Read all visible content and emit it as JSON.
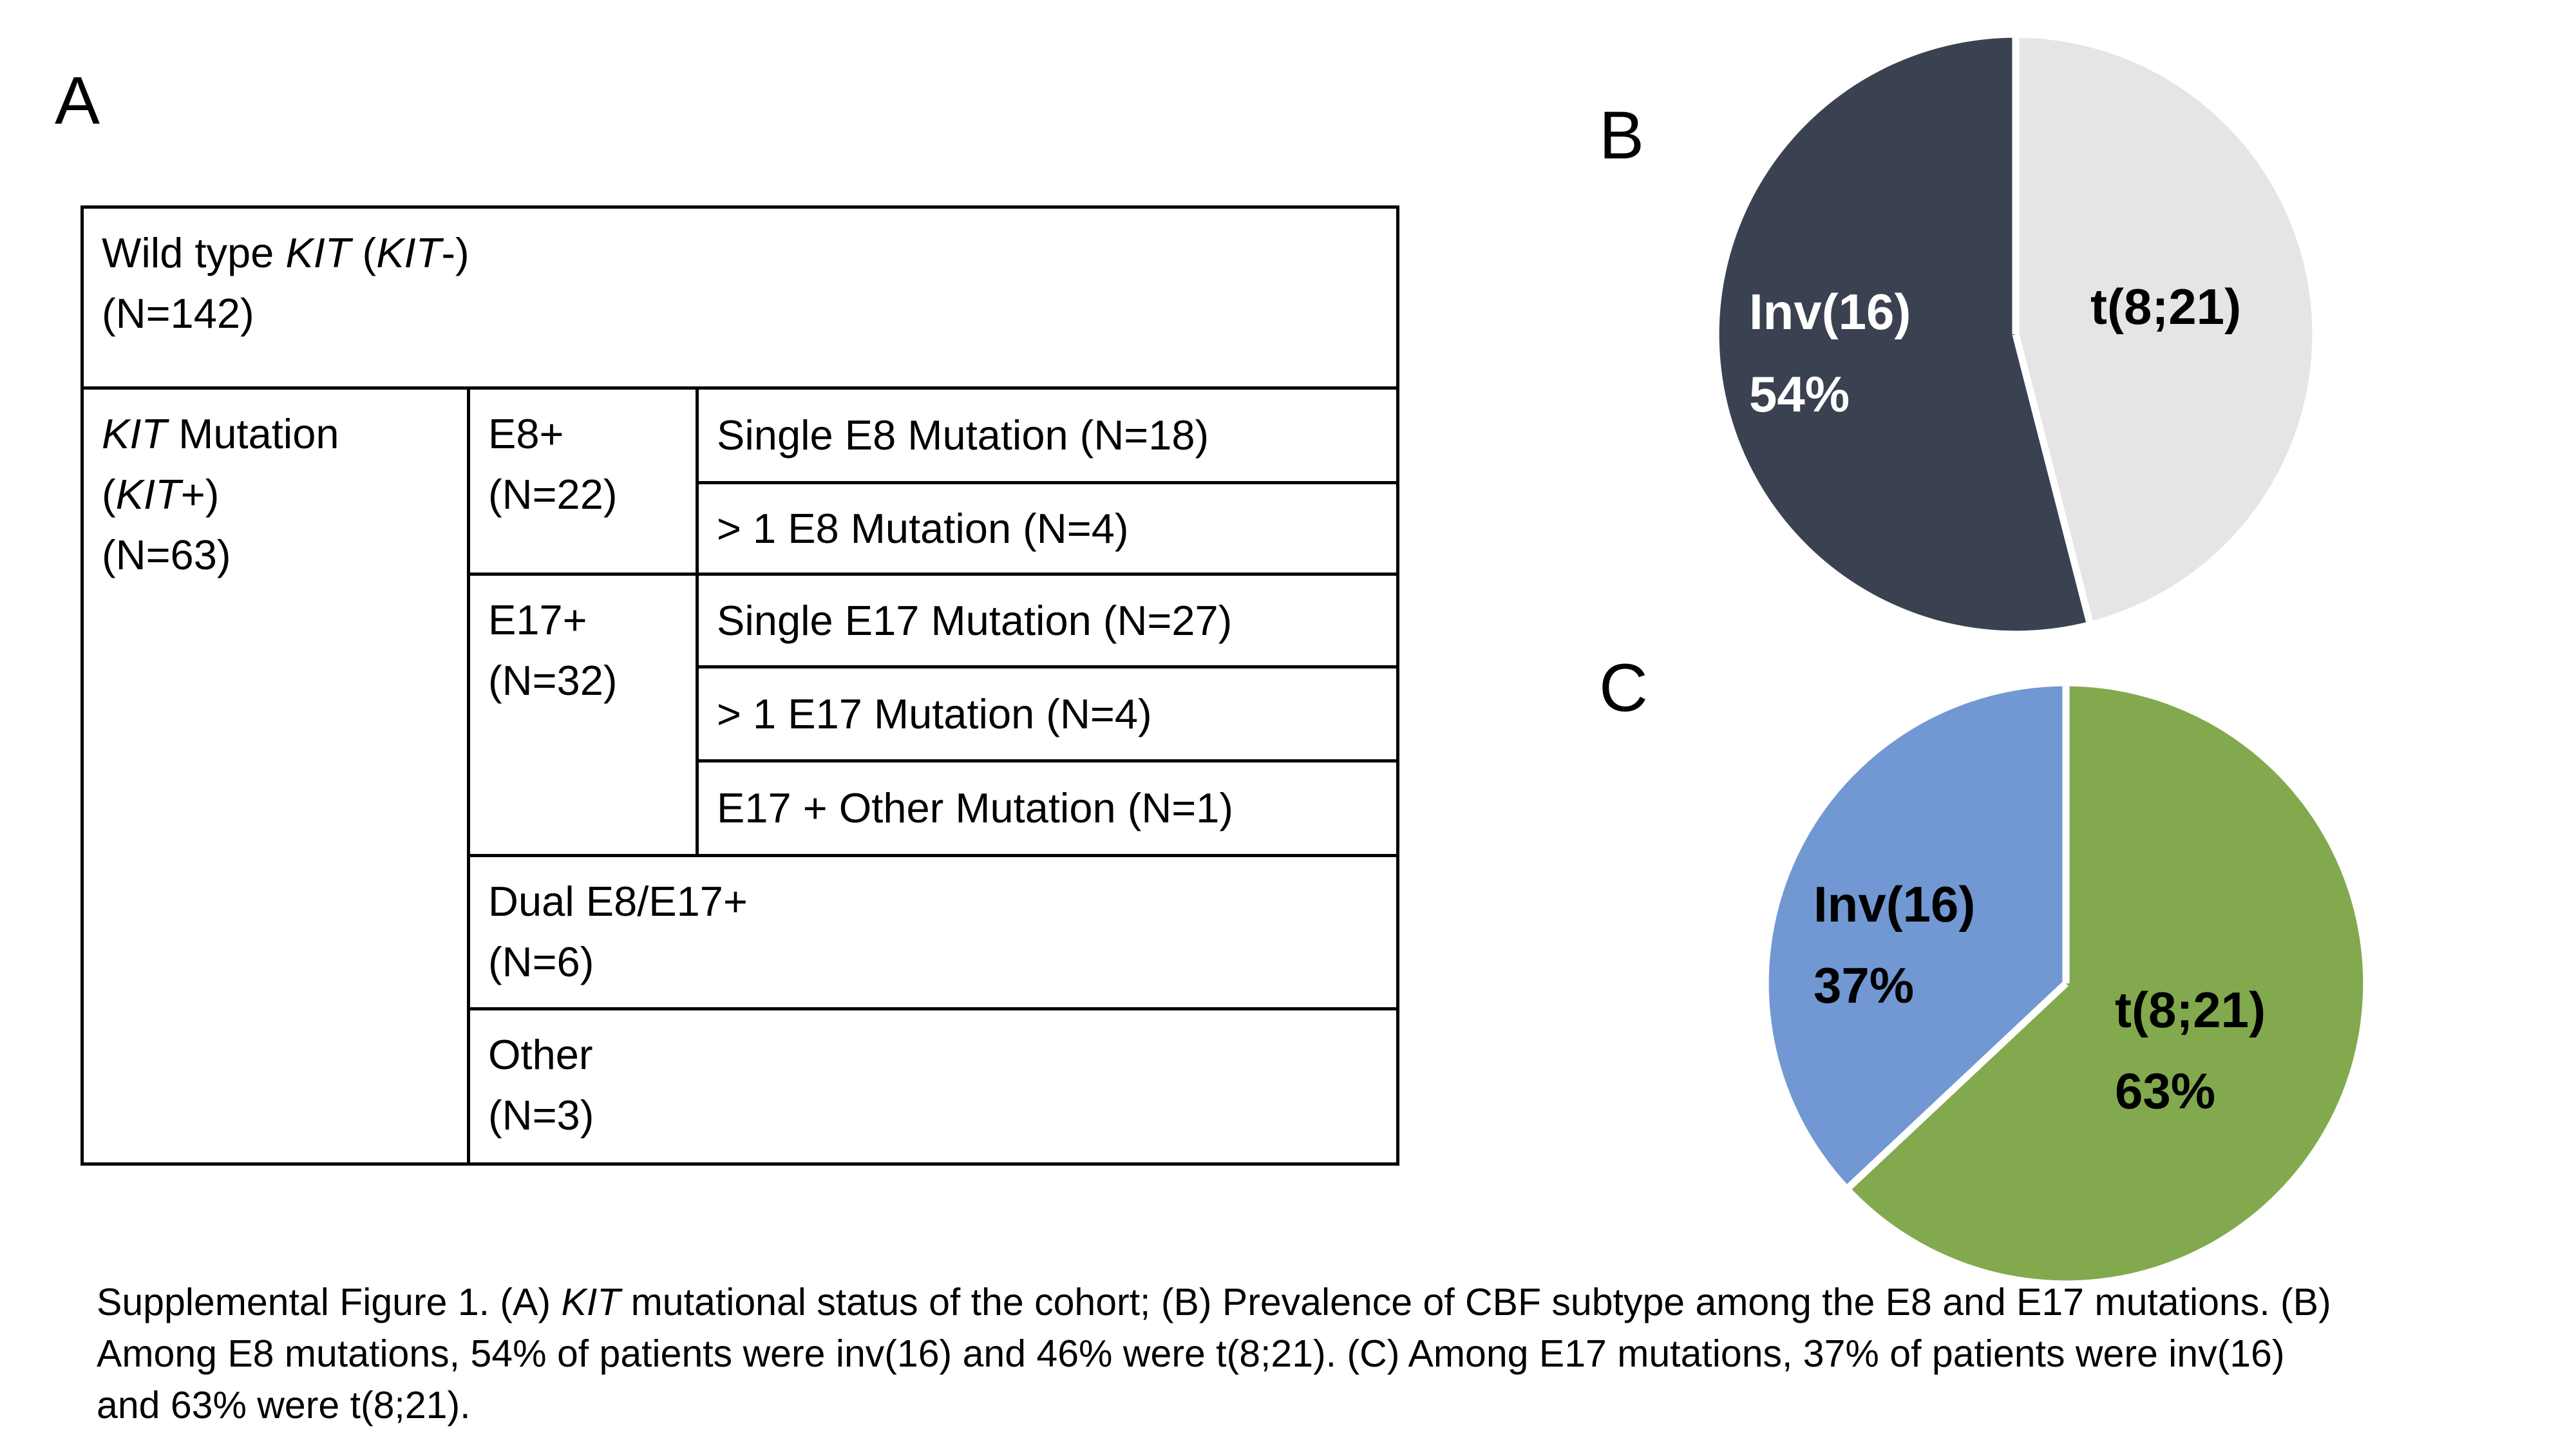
{
  "figure": {
    "panel_a_label": "A",
    "panel_b_label": "B",
    "panel_c_label": "C"
  },
  "table": {
    "wild_type": {
      "lines": [
        [
          {
            "t": "Wild type "
          },
          {
            "t": "KIT",
            "i": true
          },
          {
            "t": " ("
          },
          {
            "t": "KIT",
            "i": true
          },
          {
            "t": "-)"
          }
        ],
        [
          {
            "t": "(N=142)"
          }
        ]
      ]
    },
    "kit_mutation": {
      "lines": [
        [
          {
            "t": "KIT",
            "i": true
          },
          {
            "t": " Mutation"
          }
        ],
        [
          {
            "t": "("
          },
          {
            "t": "KIT",
            "i": true
          },
          {
            "t": "+)"
          }
        ],
        [
          {
            "t": "(N=63)"
          }
        ]
      ]
    },
    "e8": {
      "lines": [
        [
          {
            "t": "E8+"
          }
        ],
        [
          {
            "t": "(N=22)"
          }
        ]
      ]
    },
    "single_e8": {
      "lines": [
        [
          {
            "t": "Single E8 Mutation (N=18)"
          }
        ]
      ]
    },
    "multi_e8": {
      "lines": [
        [
          {
            "t": "> 1 E8 Mutation (N=4)"
          }
        ]
      ]
    },
    "e17": {
      "lines": [
        [
          {
            "t": "E17+"
          }
        ],
        [
          {
            "t": "(N=32)"
          }
        ]
      ]
    },
    "single_e17": {
      "lines": [
        [
          {
            "t": "Single E17 Mutation (N=27)"
          }
        ]
      ]
    },
    "multi_e17": {
      "lines": [
        [
          {
            "t": "> 1 E17 Mutation (N=4)"
          }
        ]
      ]
    },
    "e17_other": {
      "lines": [
        [
          {
            "t": "E17 + Other Mutation (N=1)"
          }
        ]
      ]
    },
    "dual": {
      "lines": [
        [
          {
            "t": "Dual E8/E17+"
          }
        ],
        [
          {
            "t": "(N=6)"
          }
        ]
      ]
    },
    "other": {
      "lines": [
        [
          {
            "t": "Other"
          }
        ],
        [
          {
            "t": "(N=3)"
          }
        ]
      ]
    }
  },
  "chart_data": [
    {
      "type": "pie",
      "panel": "B",
      "slices": [
        {
          "label": "Inv(16)",
          "value_pct": 54,
          "pct_label": "54%",
          "color": "#3A4151",
          "label_color": "#FFFFFF"
        },
        {
          "label": "t(8;21)",
          "value_pct": 46,
          "pct_label": "",
          "color": "#E6E5E6",
          "label_color": "#000000"
        }
      ],
      "start": "12-oclock",
      "first_slice_direction": "counterclockwise",
      "separator_color": "#FFFFFF",
      "legend": "none"
    },
    {
      "type": "pie",
      "panel": "C",
      "slices": [
        {
          "label": "Inv(16)",
          "value_pct": 37,
          "pct_label": "37%",
          "color": "#7198D3",
          "label_color": "#000000"
        },
        {
          "label": "t(8;21)",
          "value_pct": 63,
          "pct_label": "63%",
          "color": "#82A94E",
          "label_color": "#000000"
        }
      ],
      "start": "12-oclock",
      "first_slice_direction": "counterclockwise",
      "separator_color": "#FFFFFF",
      "legend": "none"
    },
    {
      "type": "table",
      "panel": "A",
      "rows": [
        {
          "group": "Wild type KIT (KIT-)",
          "n": 142
        },
        {
          "group": "KIT Mutation (KIT+)",
          "n": 63,
          "subgroups": [
            {
              "group": "E8+",
              "n": 22,
              "subgroups": [
                {
                  "group": "Single E8 Mutation",
                  "n": 18
                },
                {
                  "group": "> 1 E8 Mutation",
                  "n": 4
                }
              ]
            },
            {
              "group": "E17+",
              "n": 32,
              "subgroups": [
                {
                  "group": "Single E17 Mutation",
                  "n": 27
                },
                {
                  "group": "> 1 E17 Mutation",
                  "n": 4
                },
                {
                  "group": "E17 + Other Mutation",
                  "n": 1
                }
              ]
            },
            {
              "group": "Dual E8/E17+",
              "n": 6
            },
            {
              "group": "Other",
              "n": 3
            }
          ]
        }
      ]
    }
  ],
  "caption": {
    "lines": [
      [
        {
          "t": "Supplemental Figure 1. (A) "
        },
        {
          "t": "KIT",
          "i": true
        },
        {
          "t": " mutational status of the cohort; (B) Prevalence of CBF subtype among the E8 and E17 mutations. (B)"
        }
      ],
      [
        {
          "t": "Among E8 mutations, 54% of patients were inv(16) and 46% were t(8;21). (C) Among E17 mutations, 37% of patients were inv(16)"
        }
      ],
      [
        {
          "t": "and 63% were t(8;21)."
        }
      ]
    ]
  }
}
